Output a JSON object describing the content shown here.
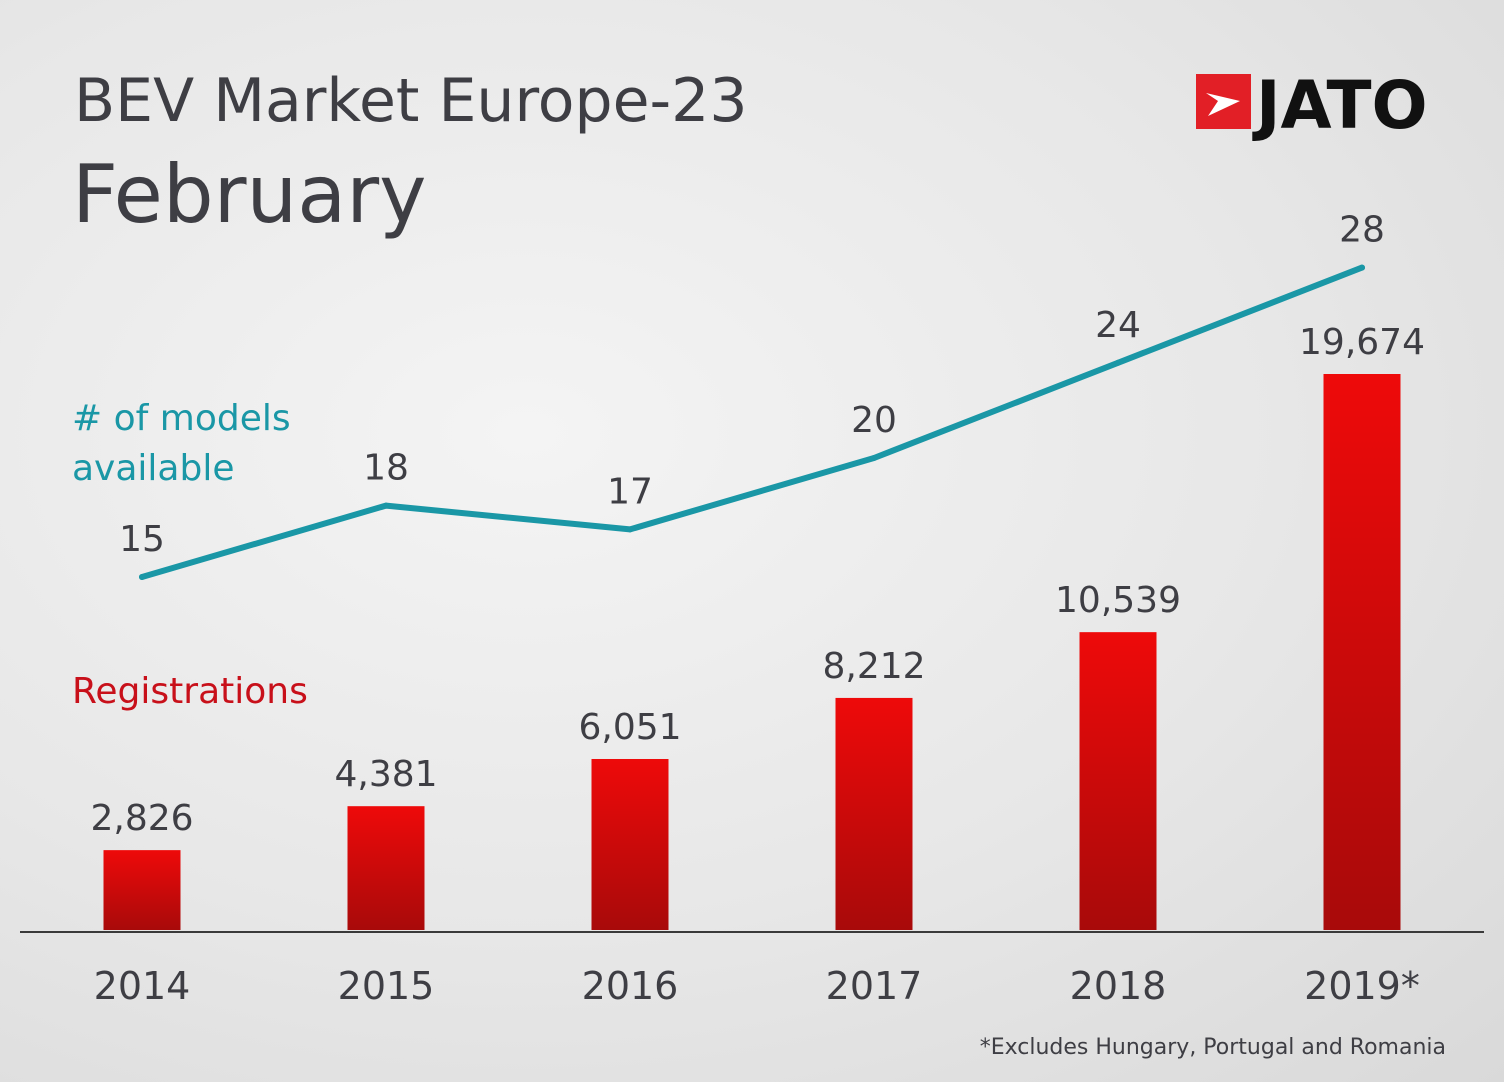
{
  "header": {
    "title": "BEV Market Europe-23",
    "subtitle": "February"
  },
  "logo": {
    "text": "JATO",
    "mark_color": "#e21f26",
    "text_color": "#111111"
  },
  "footnote": "*Excludes Hungary, Portugal and Romania",
  "colors": {
    "bar_top": "#ee0a0a",
    "bar_bottom": "#a80a0a",
    "line": "#1a97a6",
    "line_label": "#1a97a6",
    "bar_label": "#c8101a",
    "text": "#3e3e44"
  },
  "chart_data": {
    "type": "bar",
    "categories": [
      "2014",
      "2015",
      "2016",
      "2017",
      "2018",
      "2019*"
    ],
    "series": [
      {
        "name": "Registrations",
        "type": "bar",
        "values": [
          2826,
          4381,
          6051,
          8212,
          10539,
          19674
        ],
        "labels": [
          "2,826",
          "4,381",
          "6,051",
          "8,212",
          "10,539",
          "19,674"
        ]
      },
      {
        "name": "# of models available",
        "type": "line",
        "values": [
          15,
          18,
          17,
          20,
          24,
          28
        ],
        "labels": [
          "15",
          "18",
          "17",
          "20",
          "24",
          "28"
        ]
      }
    ],
    "legend": {
      "line_label_lines": [
        "# of models",
        "available"
      ],
      "bar_label": "Registrations"
    },
    "grid": false
  }
}
